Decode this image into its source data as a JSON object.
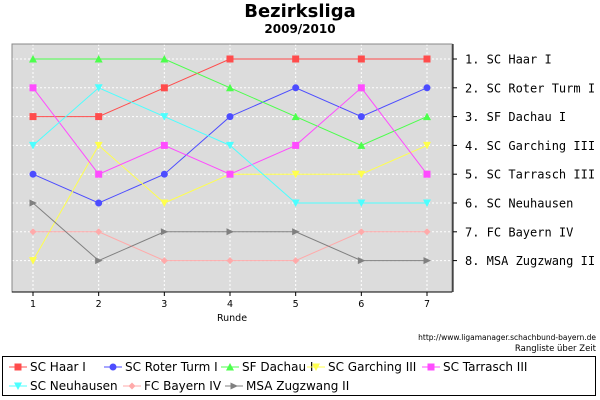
{
  "header": {
    "title": "Bezirksliga",
    "subtitle": "2009/2010"
  },
  "footer": {
    "credit": "http://www.ligamanager.schachbund-bayern.de",
    "ranking_note": "Rangliste über Zeit"
  },
  "chart_data": {
    "type": "line",
    "title": "Bezirksliga",
    "subtitle": "2009/2010",
    "xlabel": "Runde",
    "ylabel": "",
    "x": [
      1,
      2,
      3,
      4,
      5,
      6,
      7
    ],
    "xlim": [
      1,
      7
    ],
    "ylim": [
      1,
      8
    ],
    "y_inverted": true,
    "grid": true,
    "plot_background": "#dcdcdc",
    "right_axis_labels": [
      "1. SC Haar I",
      "2. SC Roter Turm I",
      "3. SF Dachau I",
      "4. SC Garching III",
      "5. SC Tarrasch III",
      "6. SC Neuhausen",
      "7. FC Bayern IV",
      "8. MSA Zugzwang II"
    ],
    "legend_position": "bottom",
    "series": [
      {
        "name": "SC Haar I",
        "color": "#ff4c4c",
        "marker": "square",
        "values": [
          3,
          3,
          2,
          1,
          1,
          1,
          1
        ]
      },
      {
        "name": "SC Roter Turm I",
        "color": "#4c4cff",
        "marker": "circle",
        "values": [
          5,
          6,
          5,
          3,
          2,
          3,
          2
        ]
      },
      {
        "name": "SF Dachau I",
        "color": "#4cff4c",
        "marker": "triangle-up",
        "values": [
          1,
          1,
          1,
          2,
          3,
          4,
          3
        ]
      },
      {
        "name": "SC Garching III",
        "color": "#ffff4c",
        "marker": "triangle-down",
        "values": [
          8,
          4,
          6,
          5,
          5,
          5,
          4
        ]
      },
      {
        "name": "SC Tarrasch III",
        "color": "#ff4cff",
        "marker": "square",
        "values": [
          2,
          5,
          4,
          5,
          4,
          2,
          5
        ]
      },
      {
        "name": "SC Neuhausen",
        "color": "#4cffff",
        "marker": "triangle-down",
        "values": [
          4,
          2,
          3,
          4,
          6,
          6,
          6
        ]
      },
      {
        "name": "FC Bayern IV",
        "color": "#ffaaaa",
        "marker": "diamond",
        "values": [
          7,
          7,
          8,
          8,
          8,
          7,
          7
        ]
      },
      {
        "name": "MSA Zugzwang II",
        "color": "#808080",
        "marker": "triangle-right",
        "values": [
          6,
          8,
          7,
          7,
          7,
          8,
          8
        ]
      }
    ]
  }
}
